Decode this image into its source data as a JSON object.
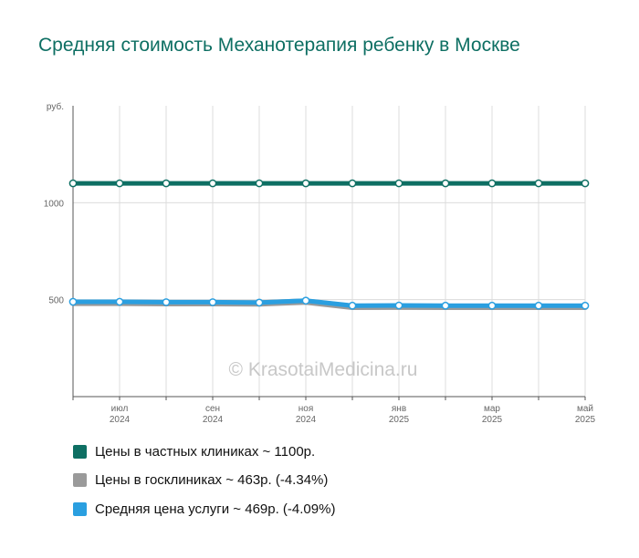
{
  "chart_data": {
    "type": "line",
    "title": "Средняя стоимость Механотерапия ребенку в Москве",
    "y_unit_label": "руб.",
    "ylim": [
      0,
      1500
    ],
    "y_ticks": [
      {
        "value": 500,
        "label": "500"
      },
      {
        "value": 1000,
        "label": "1000"
      }
    ],
    "x_ticks": [
      {
        "index": 1,
        "month": "июл",
        "year": "2024"
      },
      {
        "index": 3,
        "month": "сен",
        "year": "2024"
      },
      {
        "index": 5,
        "month": "ноя",
        "year": "2024"
      },
      {
        "index": 7,
        "month": "янв",
        "year": "2025"
      },
      {
        "index": 9,
        "month": "мар",
        "year": "2025"
      },
      {
        "index": 11,
        "month": "май",
        "year": "2025"
      }
    ],
    "point_count": 12,
    "grid": true,
    "series": [
      {
        "name": "Цены в частных клиниках ~ 1100р.",
        "color": "#0e6f63",
        "values": [
          1100,
          1100,
          1100,
          1100,
          1100,
          1100,
          1100,
          1100,
          1100,
          1100,
          1100,
          1100
        ]
      },
      {
        "name": "Цены в госклиниках ~ 463р. (-4.34%)",
        "color": "#9a9a9a",
        "values": [
          484,
          484,
          482,
          482,
          481,
          490,
          463,
          464,
          463,
          463,
          463,
          463
        ]
      },
      {
        "name": "Средняя цена услуги ~ 469р. (-4.09%)",
        "color": "#2a9fe0",
        "values": [
          489,
          489,
          487,
          487,
          485,
          495,
          469,
          470,
          469,
          469,
          469,
          469
        ]
      }
    ],
    "watermark": "© KrasotaiMedicina.ru"
  }
}
